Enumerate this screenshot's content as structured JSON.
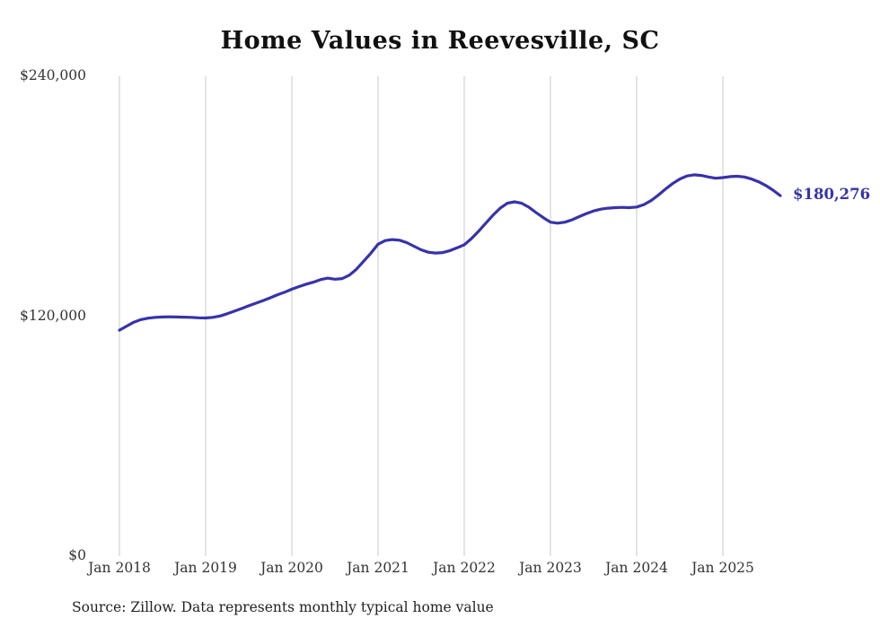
{
  "title": "Home Values in Reevesville, SC",
  "source_note": "Source: Zillow. Data represents monthly typical home value",
  "colors": {
    "line": "#3733ab",
    "end_label": "#3733ab",
    "gridline": "#c9c9c9",
    "axis_text": "#333333"
  },
  "chart_data": {
    "type": "line",
    "title": "Home Values in Reevesville, SC",
    "xlabel": "",
    "ylabel": "",
    "ylim": [
      0,
      240000
    ],
    "grid": "vertical",
    "legend": "none",
    "last_value_label": "$180,276",
    "y_ticks": [
      {
        "value": 0,
        "label": "$0"
      },
      {
        "value": 120000,
        "label": "$120,000"
      },
      {
        "value": 240000,
        "label": "$240,000"
      }
    ],
    "x_ticks": [
      {
        "label": "Jan 2018",
        "month_index": 0
      },
      {
        "label": "Jan 2019",
        "month_index": 12
      },
      {
        "label": "Jan 2020",
        "month_index": 24
      },
      {
        "label": "Jan 2021",
        "month_index": 36
      },
      {
        "label": "Jan 2022",
        "month_index": 48
      },
      {
        "label": "Jan 2023",
        "month_index": 60
      },
      {
        "label": "Jan 2024",
        "month_index": 72
      },
      {
        "label": "Jan 2025",
        "month_index": 84
      }
    ],
    "series": [
      {
        "name": "Monthly typical home value",
        "start_month": "2018-01",
        "values": [
          113000,
          115000,
          117000,
          118300,
          119000,
          119400,
          119600,
          119700,
          119600,
          119500,
          119400,
          119200,
          119100,
          119400,
          120100,
          121200,
          122500,
          123800,
          125200,
          126500,
          127800,
          129200,
          130700,
          132000,
          133500,
          134800,
          136000,
          137000,
          138300,
          139000,
          138500,
          138800,
          140500,
          143500,
          147500,
          151500,
          156000,
          157800,
          158300,
          158000,
          156800,
          155000,
          153200,
          152000,
          151600,
          151800,
          152800,
          154200,
          155700,
          158800,
          162500,
          166500,
          170500,
          174000,
          176500,
          177200,
          176500,
          174500,
          171800,
          169300,
          167000,
          166500,
          167000,
          168200,
          169800,
          171300,
          172600,
          173500,
          174000,
          174300,
          174400,
          174300,
          174600,
          175800,
          177800,
          180500,
          183500,
          186300,
          188600,
          190100,
          190700,
          190400,
          189600,
          189000,
          189300,
          189800,
          190000,
          189600,
          188600,
          187200,
          185300,
          183000,
          180276
        ]
      }
    ]
  }
}
